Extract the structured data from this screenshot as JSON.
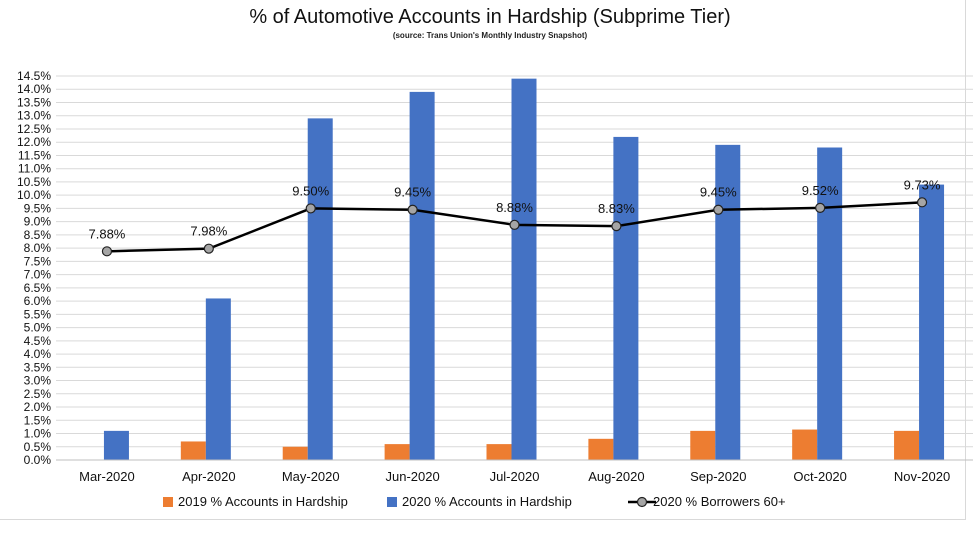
{
  "chart_data": {
    "type": "bar",
    "title": "% of Automotive Accounts in Hardship (Subprime Tier)",
    "subtitle": "(source: Trans Union's Monthly Industry Snapshot)",
    "categories": [
      "Mar-2020",
      "Apr-2020",
      "May-2020",
      "Jun-2020",
      "Jul-2020",
      "Aug-2020",
      "Sep-2020",
      "Oct-2020",
      "Nov-2020"
    ],
    "series": [
      {
        "name": "2019 % Accounts in Hardship",
        "kind": "bar",
        "color": "#ed7d31",
        "values": [
          null,
          0.7,
          0.5,
          0.6,
          0.6,
          0.8,
          1.1,
          1.15,
          1.1
        ]
      },
      {
        "name": "2020 % Accounts in Hardship",
        "kind": "bar",
        "color": "#4472c4",
        "values": [
          1.1,
          6.1,
          12.9,
          13.9,
          14.4,
          12.2,
          11.9,
          11.8,
          10.4
        ]
      },
      {
        "name": "2020 % Borrowers 60+",
        "kind": "line",
        "color": "#000000",
        "marker_color": "#a5a5a5",
        "values": [
          7.88,
          7.98,
          9.5,
          9.45,
          8.88,
          8.83,
          9.45,
          9.52,
          9.73
        ],
        "labels": [
          "7.88%",
          "7.98%",
          "9.50%",
          "9.45%",
          "8.88%",
          "8.83%",
          "9.45%",
          "9.52%",
          "9.73%"
        ]
      }
    ],
    "y_ticks": [
      "0.0%",
      "0.5%",
      "1.0%",
      "1.5%",
      "2.0%",
      "2.5%",
      "3.0%",
      "3.5%",
      "4.0%",
      "4.5%",
      "5.0%",
      "5.5%",
      "6.0%",
      "6.5%",
      "7.0%",
      "7.5%",
      "8.0%",
      "8.5%",
      "9.0%",
      "9.5%",
      "10.0%",
      "10.5%",
      "11.0%",
      "11.5%",
      "12.0%",
      "12.5%",
      "13.0%",
      "13.5%",
      "14.0%",
      "14.5%"
    ],
    "ylim": [
      0,
      14.5
    ],
    "grid": true,
    "legend_position": "bottom"
  }
}
